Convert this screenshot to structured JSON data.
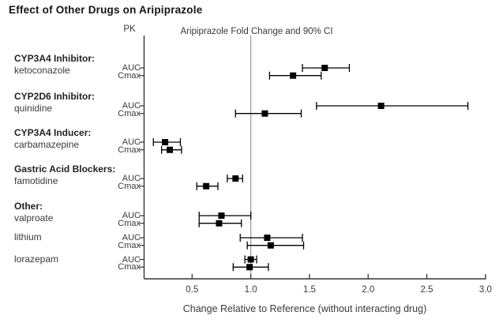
{
  "chart_data": {
    "type": "scatter",
    "subtype": "forest-plot",
    "title": "Effect of Other Drugs on Aripiprazole",
    "column_headers": {
      "pk": "PK",
      "plot": "Aripiprazole Fold Change and 90% CI"
    },
    "xlabel": "Change Relative to Reference (without interacting drug)",
    "x_ticks": [
      "0.5",
      "1.0",
      "1.5",
      "2.0",
      "2.5",
      "3.0"
    ],
    "xlim": [
      0.09,
      3.02
    ],
    "reference_line_x": 1.0,
    "grid": false,
    "legend": "none",
    "marker": "black-square",
    "error_bar_meaning": "90% confidence interval",
    "colors": {
      "marker": "#000000",
      "error_bar": "#000000",
      "axis": "#333333",
      "reference_line": "#9a9a9a",
      "text": "#3a3a3a"
    },
    "groups": [
      {
        "category": "CYP3A4 Inhibitor:",
        "drug": "ketoconazole",
        "rows": [
          {
            "pk": "AUC",
            "value": 1.63,
            "ci_low": 1.44,
            "ci_high": 1.84
          },
          {
            "pk": "Cmax",
            "value": 1.36,
            "ci_low": 1.16,
            "ci_high": 1.6
          }
        ]
      },
      {
        "category": "CYP2D6 Inhibitor:",
        "drug": "quinidine",
        "rows": [
          {
            "pk": "AUC",
            "value": 2.11,
            "ci_low": 1.56,
            "ci_high": 2.85
          },
          {
            "pk": "Cmax",
            "value": 1.12,
            "ci_low": 0.87,
            "ci_high": 1.43
          }
        ]
      },
      {
        "category": "CYP3A4 Inducer:",
        "drug": "carbamazepine",
        "rows": [
          {
            "pk": "AUC",
            "value": 0.27,
            "ci_low": 0.17,
            "ci_high": 0.4
          },
          {
            "pk": "Cmax",
            "value": 0.31,
            "ci_low": 0.24,
            "ci_high": 0.41
          }
        ]
      },
      {
        "category": "Gastric Acid Blockers:",
        "drug": "famotidine",
        "rows": [
          {
            "pk": "AUC",
            "value": 0.87,
            "ci_low": 0.8,
            "ci_high": 0.93
          },
          {
            "pk": "Cmax",
            "value": 0.62,
            "ci_low": 0.54,
            "ci_high": 0.72
          }
        ]
      },
      {
        "category": "Other:",
        "drug": "valproate",
        "rows": [
          {
            "pk": "AUC",
            "value": 0.75,
            "ci_low": 0.56,
            "ci_high": 1.0
          },
          {
            "pk": "Cmax",
            "value": 0.73,
            "ci_low": 0.56,
            "ci_high": 0.92
          }
        ]
      },
      {
        "category": null,
        "drug": "lithium",
        "rows": [
          {
            "pk": "AUC",
            "value": 1.14,
            "ci_low": 0.91,
            "ci_high": 1.44
          },
          {
            "pk": "Cmax",
            "value": 1.17,
            "ci_low": 0.97,
            "ci_high": 1.45
          }
        ]
      },
      {
        "category": null,
        "drug": "lorazepam",
        "rows": [
          {
            "pk": "AUC",
            "value": 1.0,
            "ci_low": 0.95,
            "ci_high": 1.05
          },
          {
            "pk": "Cmax",
            "value": 0.99,
            "ci_low": 0.85,
            "ci_high": 1.15
          }
        ]
      }
    ]
  }
}
